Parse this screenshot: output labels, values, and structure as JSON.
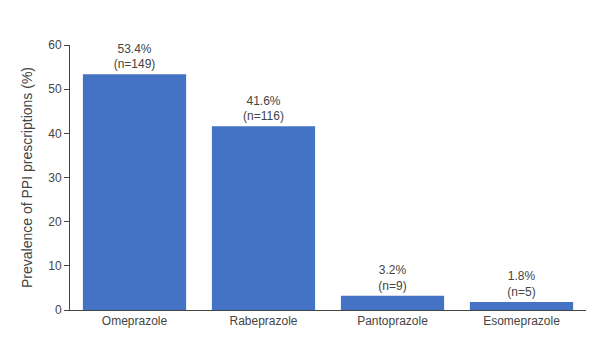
{
  "chart_data": {
    "type": "bar",
    "categories": [
      "Omeprazole",
      "Rabeprazole",
      "Pantoprazole",
      "Esomeprazole"
    ],
    "values": [
      53.4,
      41.6,
      3.2,
      1.8
    ],
    "value_labels": [
      "53.4%\n(n=149)",
      "41.6%\n(n=116)",
      "3.2%\n(n=9)",
      "1.8%\n(n=5)"
    ],
    "data_labels": true,
    "color": "#4472C4",
    "ylabel": "Prevalence of PPI prescriptions (%)",
    "ylim": [
      0,
      60
    ],
    "yticks": [
      0,
      10,
      20,
      30,
      40,
      50,
      60
    ],
    "grid": false
  }
}
